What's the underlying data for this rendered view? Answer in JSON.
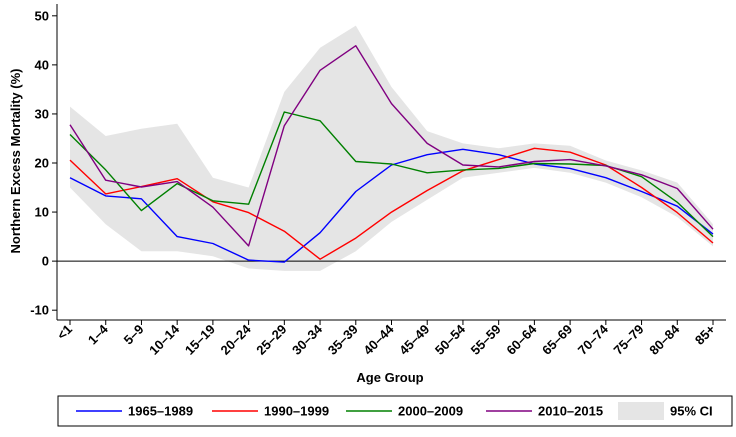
{
  "chart_data": {
    "type": "line",
    "title": "",
    "xlabel": "Age Group",
    "ylabel": "Northern Excess Mortality (%)",
    "ylim": [
      -12,
      52
    ],
    "yticks": [
      -10,
      0,
      10,
      20,
      30,
      40,
      50
    ],
    "grid": false,
    "legend_position": "bottom",
    "categories": [
      "<1",
      "1–4",
      "5–9",
      "10–14",
      "15–19",
      "20–24",
      "25–29",
      "30–34",
      "35–39",
      "40–44",
      "45–49",
      "50–54",
      "55–59",
      "60–64",
      "65–69",
      "70–74",
      "75–79",
      "80–84",
      "85+"
    ],
    "series": [
      {
        "name": "1965–1989",
        "color": "#0000ff",
        "values": [
          17.0,
          13.3,
          12.7,
          5.0,
          3.6,
          0.2,
          -0.2,
          5.8,
          14.2,
          19.6,
          21.7,
          22.8,
          21.7,
          19.8,
          18.9,
          17.0,
          14.2,
          11.2,
          5.5
        ],
        "ci_low": [
          15.0,
          7.5,
          2.0,
          2.0,
          1.0,
          -1.5,
          -2.0,
          3.0,
          12.0,
          18.0,
          20.0,
          21.5,
          20.5,
          19.0,
          18.0,
          16.0,
          13.0,
          10.0,
          4.5
        ],
        "ci_high": [
          31.5,
          25.5,
          27.0,
          28.0,
          17.0,
          15.0,
          9.0,
          8.0,
          16.5,
          21.5,
          23.0,
          24.0,
          23.0,
          21.0,
          20.0,
          18.0,
          15.5,
          12.5,
          6.5
        ]
      },
      {
        "name": "1990–1999",
        "color": "#ff0000",
        "values": [
          20.6,
          13.7,
          15.2,
          16.8,
          12.1,
          9.9,
          6.1,
          0.4,
          4.7,
          10.0,
          14.4,
          18.4,
          20.7,
          23.0,
          22.2,
          19.6,
          15.0,
          9.9,
          3.7
        ],
        "ci_low": [
          15.0,
          7.5,
          2.0,
          2.0,
          1.0,
          -1.5,
          -2.0,
          -2.0,
          2.0,
          8.0,
          12.5,
          17.0,
          19.5,
          21.5,
          21.0,
          18.5,
          14.0,
          9.0,
          3.0
        ],
        "ci_high": [
          31.5,
          25.5,
          27.0,
          28.0,
          17.0,
          15.0,
          9.0,
          3.0,
          7.0,
          12.0,
          16.0,
          19.5,
          22.0,
          24.0,
          23.5,
          20.5,
          16.5,
          11.0,
          4.5
        ]
      },
      {
        "name": "2000–2009",
        "color": "#008000",
        "values": [
          25.8,
          18.6,
          10.3,
          15.8,
          12.3,
          11.6,
          30.4,
          28.6,
          20.3,
          19.8,
          18.0,
          18.6,
          18.9,
          19.9,
          19.8,
          19.5,
          17.2,
          12.0,
          5.0
        ],
        "ci_low": [
          15.0,
          7.5,
          2.0,
          2.0,
          1.0,
          -1.5,
          22.5,
          25.0,
          18.5,
          18.0,
          17.0,
          17.5,
          18.0,
          19.0,
          19.0,
          18.5,
          16.5,
          11.0,
          4.5
        ],
        "ci_high": [
          31.5,
          25.5,
          27.0,
          28.0,
          17.0,
          15.0,
          34.5,
          31.0,
          22.5,
          21.5,
          19.5,
          19.5,
          20.0,
          21.0,
          21.0,
          20.5,
          18.0,
          13.0,
          6.0
        ]
      },
      {
        "name": "2010–2015",
        "color": "#800080",
        "values": [
          27.8,
          16.5,
          15.1,
          16.2,
          11.0,
          3.1,
          27.6,
          38.9,
          43.9,
          32.1,
          24.0,
          19.6,
          19.2,
          20.3,
          20.7,
          19.4,
          17.6,
          14.8,
          6.5
        ],
        "ci_low": [
          15.0,
          7.5,
          2.0,
          2.0,
          1.0,
          -1.5,
          21.0,
          34.0,
          39.0,
          28.5,
          22.0,
          18.5,
          18.0,
          19.5,
          20.0,
          18.5,
          16.5,
          13.5,
          5.5
        ],
        "ci_high": [
          31.5,
          25.5,
          27.0,
          28.0,
          17.0,
          15.0,
          34.0,
          43.5,
          48.0,
          35.5,
          26.5,
          21.0,
          20.5,
          21.5,
          21.5,
          20.5,
          18.5,
          16.0,
          7.5
        ]
      }
    ],
    "ci_band": {
      "name": "95% CI",
      "color": "#e5e5e5",
      "low": [
        15.0,
        7.5,
        2.0,
        2.0,
        1.0,
        -1.5,
        -2.0,
        -2.0,
        2.0,
        8.0,
        12.5,
        17.0,
        18.0,
        19.0,
        18.0,
        16.0,
        13.0,
        9.0,
        3.0
      ],
      "high": [
        31.5,
        25.5,
        27.0,
        28.0,
        17.0,
        15.0,
        34.5,
        43.5,
        48.0,
        35.5,
        26.5,
        24.0,
        23.0,
        24.0,
        23.5,
        20.5,
        18.5,
        16.0,
        7.5
      ]
    }
  }
}
